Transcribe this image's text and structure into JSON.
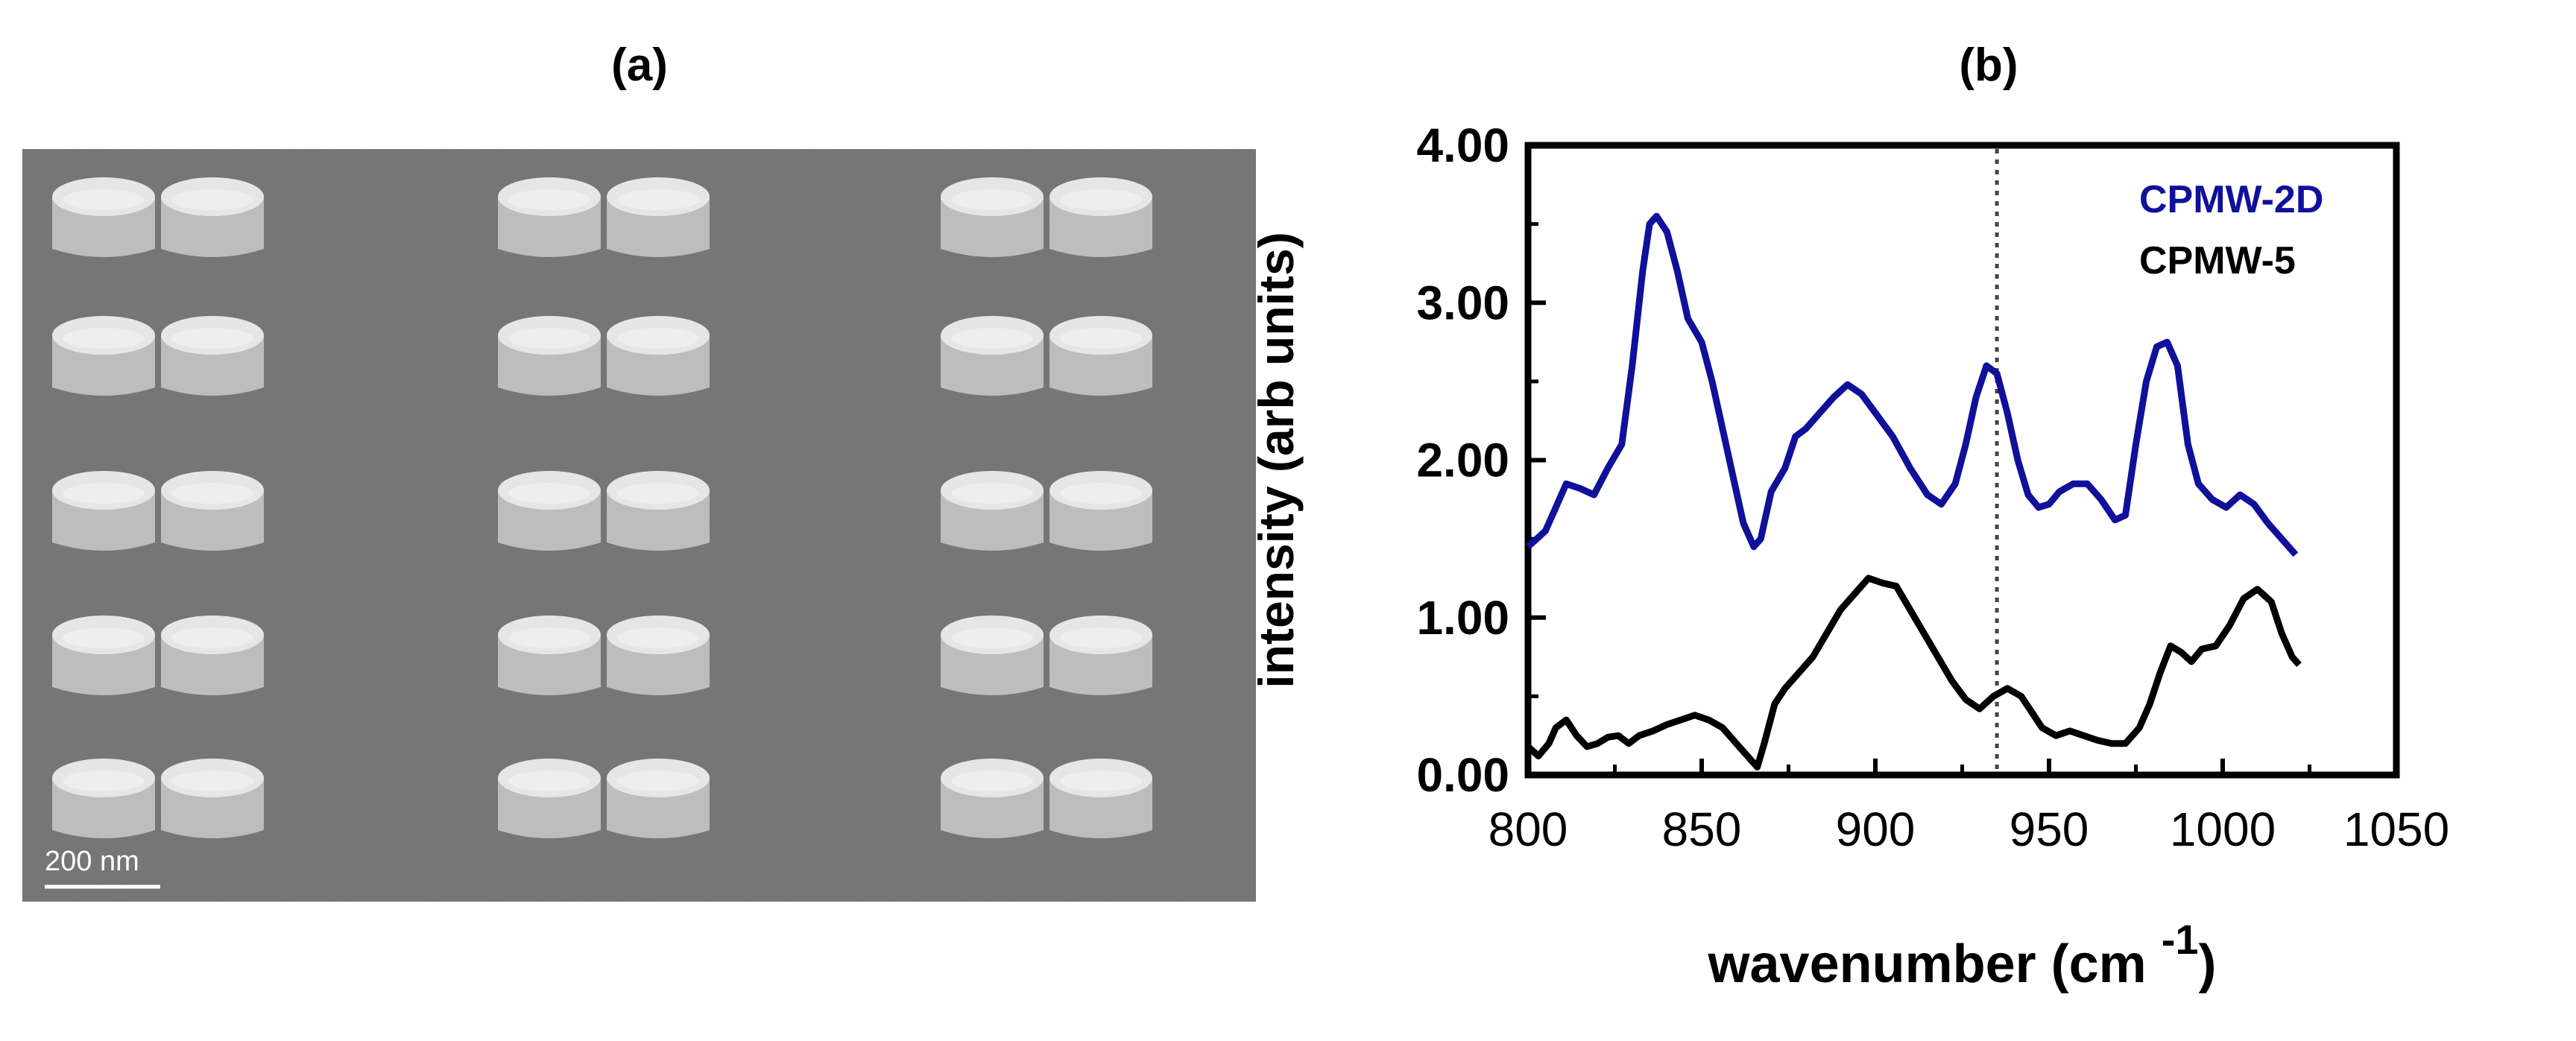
{
  "panel_a": {
    "label": "(a)",
    "scale_bar_label": "200 nm",
    "grid": {
      "columns": 3,
      "rows": 5,
      "discs_per_pair": 2
    },
    "colors": {
      "substrate": "#7b7b7b",
      "disc_top": "#e6e6e6",
      "disc_side": "#bdbdbd"
    }
  },
  "panel_b": {
    "label": "(b)",
    "legend": [
      "CPMW-2D",
      "CPMW-5"
    ]
  },
  "chart_data": {
    "type": "line",
    "xlabel": "wavenumber (cm",
    "xlabel_sup": "-1",
    "xlabel_close": ")",
    "ylabel": "intensity (arb units)",
    "xlim": [
      800,
      1050
    ],
    "ylim": [
      0,
      4
    ],
    "xticks": [
      800,
      850,
      900,
      950,
      1000,
      1050
    ],
    "xtick_labels": [
      "800",
      "850",
      "900",
      "950",
      "1000",
      "1050"
    ],
    "yticks": [
      0,
      1,
      2,
      3,
      4
    ],
    "ytick_labels": [
      "0.00",
      "1.00",
      "2.00",
      "3.00",
      "4.00"
    ],
    "grid": false,
    "legend_position": "top-right",
    "reference_line_x": 935,
    "series": [
      {
        "name": "CPMW-2D",
        "color": "#10109a",
        "points": [
          [
            800,
            1.45
          ],
          [
            805,
            1.55
          ],
          [
            808,
            1.7
          ],
          [
            811,
            1.85
          ],
          [
            815,
            1.82
          ],
          [
            819,
            1.78
          ],
          [
            823,
            1.95
          ],
          [
            827,
            2.1
          ],
          [
            830,
            2.6
          ],
          [
            833,
            3.2
          ],
          [
            835,
            3.5
          ],
          [
            837,
            3.55
          ],
          [
            840,
            3.45
          ],
          [
            843,
            3.2
          ],
          [
            846,
            2.9
          ],
          [
            850,
            2.75
          ],
          [
            853,
            2.5
          ],
          [
            856,
            2.2
          ],
          [
            859,
            1.9
          ],
          [
            862,
            1.6
          ],
          [
            865,
            1.45
          ],
          [
            867,
            1.5
          ],
          [
            870,
            1.8
          ],
          [
            874,
            1.95
          ],
          [
            877,
            2.15
          ],
          [
            880,
            2.2
          ],
          [
            884,
            2.3
          ],
          [
            888,
            2.4
          ],
          [
            892,
            2.48
          ],
          [
            896,
            2.42
          ],
          [
            900,
            2.3
          ],
          [
            905,
            2.15
          ],
          [
            910,
            1.95
          ],
          [
            915,
            1.78
          ],
          [
            919,
            1.72
          ],
          [
            923,
            1.85
          ],
          [
            926,
            2.1
          ],
          [
            929,
            2.4
          ],
          [
            932,
            2.6
          ],
          [
            935,
            2.55
          ],
          [
            938,
            2.3
          ],
          [
            941,
            2.0
          ],
          [
            944,
            1.78
          ],
          [
            947,
            1.7
          ],
          [
            950,
            1.72
          ],
          [
            953,
            1.8
          ],
          [
            957,
            1.85
          ],
          [
            961,
            1.85
          ],
          [
            965,
            1.75
          ],
          [
            969,
            1.62
          ],
          [
            972,
            1.65
          ],
          [
            975,
            2.1
          ],
          [
            978,
            2.5
          ],
          [
            981,
            2.72
          ],
          [
            984,
            2.75
          ],
          [
            987,
            2.6
          ],
          [
            990,
            2.1
          ],
          [
            993,
            1.85
          ],
          [
            997,
            1.75
          ],
          [
            1001,
            1.7
          ],
          [
            1005,
            1.78
          ],
          [
            1009,
            1.72
          ],
          [
            1013,
            1.6
          ],
          [
            1017,
            1.5
          ],
          [
            1021,
            1.4
          ]
        ]
      },
      {
        "name": "CPMW-5",
        "color": "#000000",
        "points": [
          [
            800,
            0.18
          ],
          [
            803,
            0.12
          ],
          [
            806,
            0.2
          ],
          [
            808,
            0.3
          ],
          [
            811,
            0.35
          ],
          [
            814,
            0.25
          ],
          [
            817,
            0.18
          ],
          [
            820,
            0.2
          ],
          [
            823,
            0.24
          ],
          [
            826,
            0.25
          ],
          [
            829,
            0.2
          ],
          [
            832,
            0.25
          ],
          [
            836,
            0.28
          ],
          [
            840,
            0.32
          ],
          [
            844,
            0.35
          ],
          [
            848,
            0.38
          ],
          [
            852,
            0.35
          ],
          [
            856,
            0.3
          ],
          [
            860,
            0.2
          ],
          [
            864,
            0.1
          ],
          [
            866,
            0.05
          ],
          [
            868,
            0.2
          ],
          [
            871,
            0.45
          ],
          [
            874,
            0.55
          ],
          [
            878,
            0.65
          ],
          [
            882,
            0.75
          ],
          [
            886,
            0.9
          ],
          [
            890,
            1.05
          ],
          [
            894,
            1.15
          ],
          [
            898,
            1.25
          ],
          [
            902,
            1.22
          ],
          [
            906,
            1.2
          ],
          [
            910,
            1.05
          ],
          [
            914,
            0.9
          ],
          [
            918,
            0.75
          ],
          [
            922,
            0.6
          ],
          [
            926,
            0.48
          ],
          [
            930,
            0.42
          ],
          [
            934,
            0.5
          ],
          [
            938,
            0.55
          ],
          [
            942,
            0.5
          ],
          [
            945,
            0.4
          ],
          [
            948,
            0.3
          ],
          [
            952,
            0.25
          ],
          [
            956,
            0.28
          ],
          [
            960,
            0.25
          ],
          [
            964,
            0.22
          ],
          [
            968,
            0.2
          ],
          [
            972,
            0.2
          ],
          [
            976,
            0.3
          ],
          [
            979,
            0.45
          ],
          [
            982,
            0.65
          ],
          [
            985,
            0.82
          ],
          [
            988,
            0.78
          ],
          [
            991,
            0.72
          ],
          [
            994,
            0.8
          ],
          [
            998,
            0.82
          ],
          [
            1002,
            0.95
          ],
          [
            1006,
            1.12
          ],
          [
            1010,
            1.18
          ],
          [
            1014,
            1.1
          ],
          [
            1017,
            0.9
          ],
          [
            1020,
            0.75
          ],
          [
            1022,
            0.7
          ]
        ]
      }
    ]
  }
}
